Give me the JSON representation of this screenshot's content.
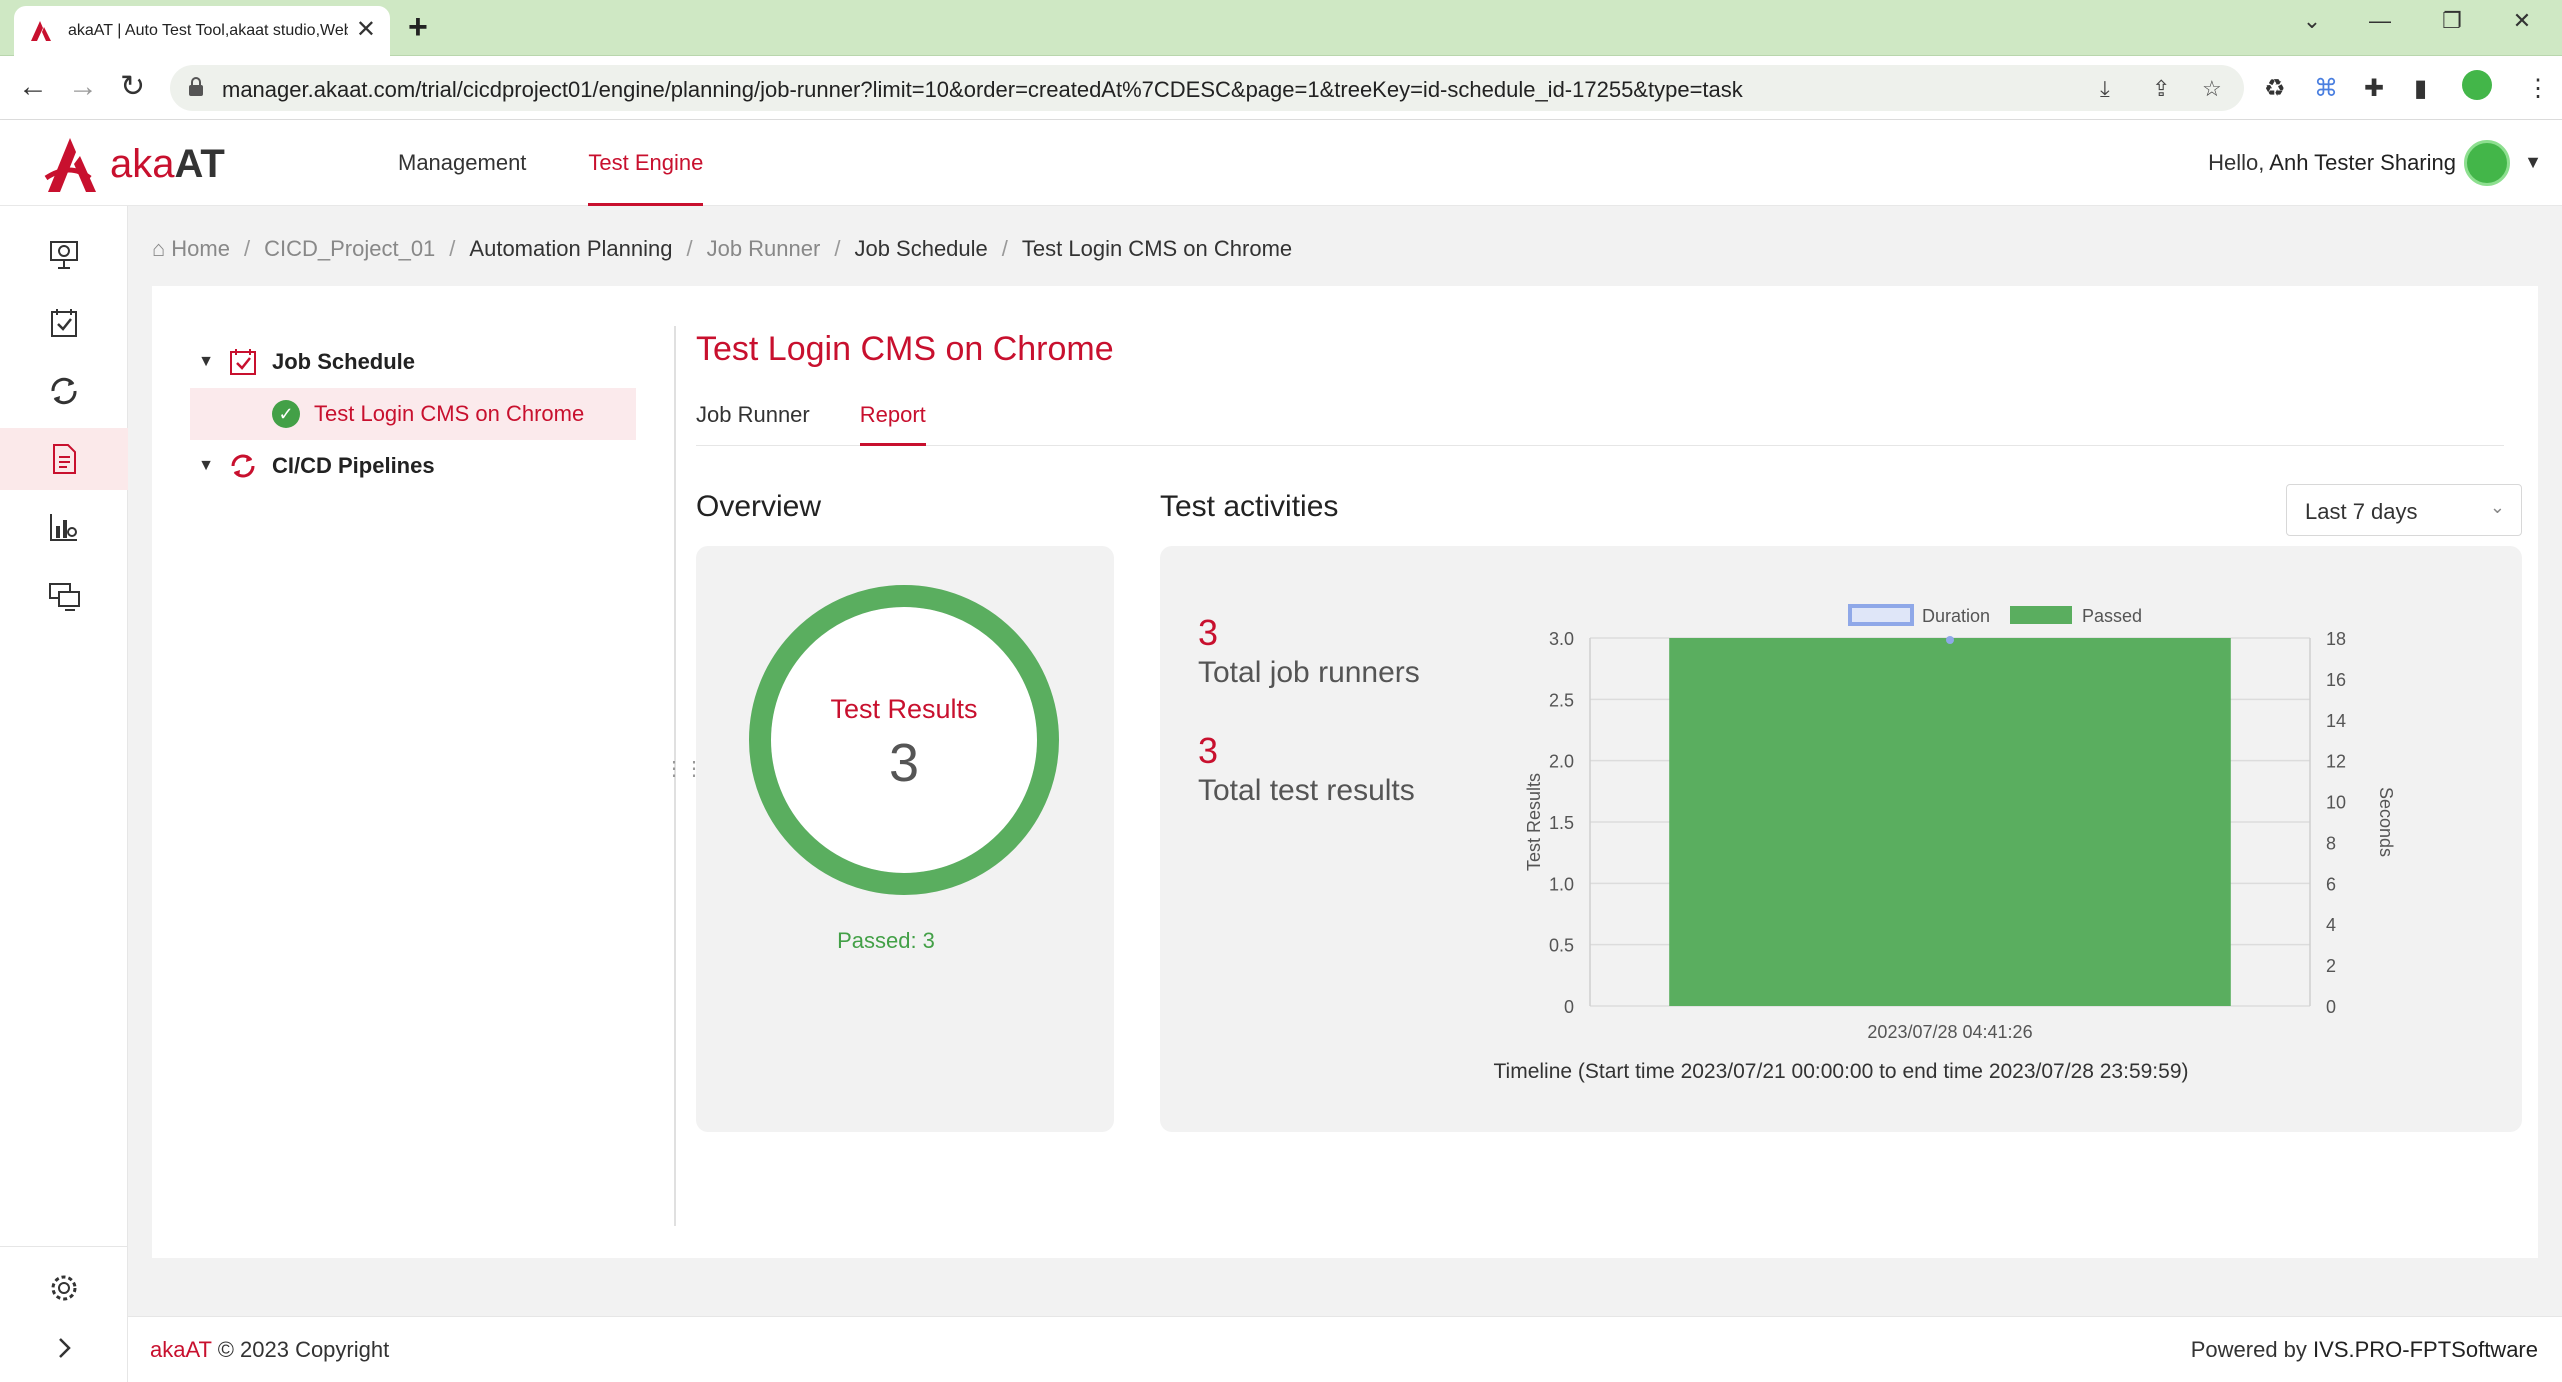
{
  "browser": {
    "tab_title": "akaAT | Auto Test Tool,akaat studio,Web",
    "url": "manager.akaat.com/trial/cicdproject01/engine/planning/job-runner?limit=10&order=createdAt%7CDESC&page=1&treeKey=id-schedule_id-17255&type=task",
    "new_tab": "+",
    "close_tab": "✕"
  },
  "header": {
    "brand_prefix": "aka",
    "brand_suffix": "AT",
    "nav": [
      "Management",
      "Test Engine"
    ],
    "active_nav": 1,
    "hello": "Hello,",
    "user_name": "Anh Tester Sharing"
  },
  "breadcrumb": {
    "items": [
      "Home",
      "CICD_Project_01",
      "Automation Planning",
      "Job Runner",
      "Job Schedule",
      "Test Login CMS on Chrome"
    ],
    "separator": "/"
  },
  "tree": {
    "job_schedule": "Job Schedule",
    "child": "Test Login CMS on Chrome",
    "cicd": "CI/CD Pipelines"
  },
  "page": {
    "title": "Test Login CMS on Chrome",
    "tabs": [
      "Job Runner",
      "Report"
    ],
    "active_tab": 1
  },
  "overview": {
    "title": "Overview",
    "donut_label": "Test Results",
    "donut_value": "3",
    "passed_legend": "Passed: 3",
    "passed_fraction": 1.0
  },
  "activities": {
    "title": "Test activities",
    "range_select": "Last 7 days",
    "total_job_runners_value": "3",
    "total_job_runners_label": "Total job runners",
    "total_test_results_value": "3",
    "total_test_results_label": "Total test results",
    "timeline": "Timeline (Start time 2023/07/21 00:00:00 to end time 2023/07/28 23:59:59)"
  },
  "chart_data": {
    "type": "bar",
    "categories": [
      "2023/07/28 04:41:26"
    ],
    "series": [
      {
        "name": "Duration",
        "type": "line",
        "axis": "right",
        "values": [
          18
        ],
        "color": "#8fa8e8"
      },
      {
        "name": "Passed",
        "type": "bar",
        "axis": "left",
        "values": [
          3
        ],
        "color": "#5aae5f"
      }
    ],
    "ylabel": "Test Results",
    "y2label": "Seconds",
    "ylim": [
      0,
      3
    ],
    "y2lim": [
      0,
      18
    ],
    "yticks": [
      "0",
      "0.5",
      "1.0",
      "1.5",
      "2.0",
      "2.5",
      "3.0"
    ],
    "y2ticks": [
      "0",
      "2",
      "4",
      "6",
      "8",
      "10",
      "12",
      "14",
      "16",
      "18"
    ],
    "legend": "top",
    "grid": true
  },
  "footer": {
    "brand": "akaAT",
    "copyright": "© 2023 Copyright",
    "powered_by": "Powered by",
    "company": "IVS.PRO-FPTSoftware"
  },
  "colors": {
    "accent": "#c8102e",
    "success": "#43a047",
    "chrome_frame": "#cfe8c4"
  }
}
